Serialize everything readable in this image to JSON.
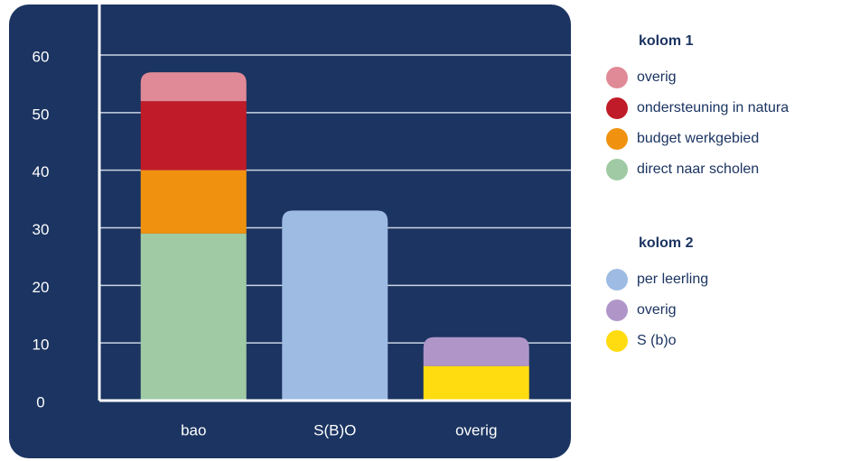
{
  "chart_data": {
    "type": "stacked_bar",
    "categories": [
      "bao",
      "S(B)O",
      "overig"
    ],
    "series": [
      {
        "name": "overig",
        "group": "kolom 1",
        "color": "#e08a97",
        "values": [
          5,
          null,
          null
        ]
      },
      {
        "name": "ondersteuning in natura",
        "group": "kolom 1",
        "color": "#c01b28",
        "values": [
          12,
          null,
          null
        ]
      },
      {
        "name": "budget werkgebied",
        "group": "kolom 1",
        "color": "#f0920f",
        "values": [
          11,
          null,
          null
        ]
      },
      {
        "name": "direct naar scholen",
        "group": "kolom 1",
        "color": "#9fcaa3",
        "values": [
          29,
          null,
          null
        ]
      },
      {
        "name": "per leerling",
        "group": "kolom 2",
        "color": "#9dbbe3",
        "values": [
          null,
          33,
          null
        ]
      },
      {
        "name": "overig",
        "group": "kolom 2",
        "color": "#b096c8",
        "values": [
          null,
          null,
          5
        ]
      },
      {
        "name": "S (b)o",
        "group": "kolom 2",
        "color": "#ffdc0f",
        "values": [
          null,
          null,
          6
        ]
      }
    ],
    "ylim": [
      0,
      60
    ],
    "yticks": [
      0,
      10,
      20,
      30,
      40,
      50,
      60
    ],
    "grid": true
  }
}
